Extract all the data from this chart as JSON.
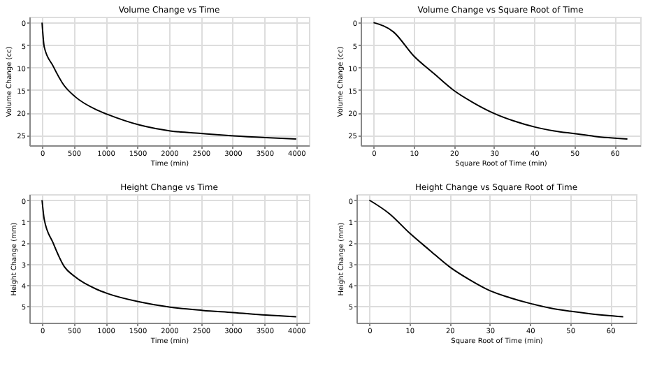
{
  "chart_data": [
    {
      "type": "line",
      "title": "Volume Change vs Time",
      "xlabel": "Time (min)",
      "ylabel": "Volume Change (cc)",
      "x": [
        0,
        34,
        171,
        342,
        513,
        855,
        1026,
        1538,
        2017,
        2530,
        3009,
        3521,
        4000
      ],
      "series": [
        {
          "color": "#000000",
          "values": [
            0,
            5.4,
            9.6,
            13.9,
            16.4,
            19.4,
            20.4,
            22.8,
            24.1,
            24.7,
            25.2,
            25.6,
            25.9
          ]
        }
      ],
      "xlim": [
        -200,
        4200
      ],
      "xticks": [
        0,
        500,
        1000,
        1500,
        2000,
        2500,
        3000,
        3500,
        4000
      ],
      "ylim": [
        27.3,
        -1.3
      ],
      "yticks": [
        0,
        5,
        10,
        15,
        20,
        25
      ],
      "grid": true
    },
    {
      "type": "line",
      "title": "Volume Change vs Square Root of Time",
      "xlabel": "Square Root of Time (min)",
      "ylabel": "Volume Change (cc)",
      "x": [
        0,
        5,
        10,
        15,
        20,
        25,
        30,
        35,
        40,
        45,
        50,
        55,
        63.2
      ],
      "series": [
        {
          "color": "#000000",
          "values": [
            0,
            2.1,
            7.4,
            11.3,
            15.1,
            17.9,
            20.2,
            21.9,
            23.2,
            24.1,
            24.7,
            25.3,
            25.9
          ]
        }
      ],
      "xlim": [
        -3.2,
        66.4
      ],
      "xticks": [
        0,
        10,
        20,
        30,
        40,
        50,
        60
      ],
      "ylim": [
        27.3,
        -1.3
      ],
      "yticks": [
        0,
        5,
        10,
        15,
        20,
        25
      ],
      "grid": true
    },
    {
      "type": "line",
      "title": "Height Change vs Time",
      "xlabel": "Time (min)",
      "ylabel": "Height Change (mm)",
      "x": [
        0,
        34,
        171,
        342,
        513,
        855,
        1026,
        1538,
        2017,
        2530,
        3009,
        3521,
        4000
      ],
      "series": [
        {
          "color": "#000000",
          "values": [
            0,
            0.9,
            2.0,
            3.1,
            3.6,
            4.2,
            4.4,
            4.8,
            5.05,
            5.2,
            5.3,
            5.42,
            5.5
          ]
        }
      ],
      "xlim": [
        -200,
        4200
      ],
      "xticks": [
        0,
        500,
        1000,
        1500,
        2000,
        2500,
        3000,
        3500,
        4000
      ],
      "ylim": [
        5.78,
        -0.28
      ],
      "yticks": [
        0,
        1,
        2,
        3,
        4,
        5
      ],
      "grid": true
    },
    {
      "type": "line",
      "title": "Height Change vs Square Root of Time",
      "xlabel": "Square Root of Time (min)",
      "ylabel": "Height Change (mm)",
      "x": [
        0,
        5,
        10,
        15,
        20,
        25,
        30,
        35,
        40,
        45,
        50,
        55,
        63.2
      ],
      "series": [
        {
          "color": "#000000",
          "values": [
            0,
            0.64,
            1.55,
            2.36,
            3.15,
            3.76,
            4.27,
            4.6,
            4.87,
            5.09,
            5.24,
            5.36,
            5.5
          ]
        }
      ],
      "xlim": [
        -3.2,
        66.4
      ],
      "xticks": [
        0,
        10,
        20,
        30,
        40,
        50,
        60
      ],
      "ylim": [
        5.78,
        -0.28
      ],
      "yticks": [
        0,
        1,
        2,
        3,
        4,
        5
      ],
      "grid": true
    }
  ]
}
